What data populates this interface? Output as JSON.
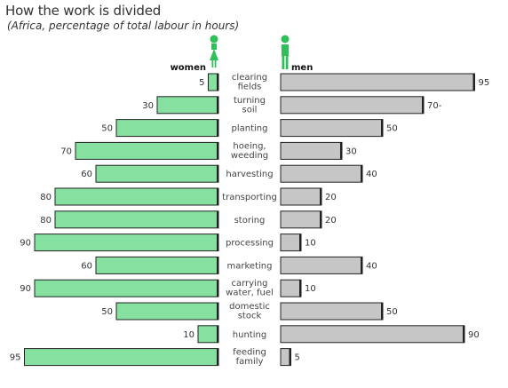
{
  "header": {
    "title": "How the work is divided",
    "subtitle": "(Africa, percentage of total labour in hours)"
  },
  "chart_data": {
    "type": "bar",
    "orientation": "horizontal",
    "layout": "butterfly",
    "title": "How the work is divided",
    "subtitle": "(Africa, percentage of total labour in hours)",
    "categories": [
      [
        "clearing",
        "fields"
      ],
      [
        "turning",
        "soil"
      ],
      [
        "planting"
      ],
      [
        "hoeing,",
        "weeding"
      ],
      [
        "harvesting"
      ],
      [
        "transporting"
      ],
      [
        "storing"
      ],
      [
        "processing"
      ],
      [
        "marketing"
      ],
      [
        "carrying",
        "water, fuel"
      ],
      [
        "domestic",
        "stock"
      ],
      [
        "hunting"
      ],
      [
        "feeding",
        "family"
      ]
    ],
    "series": [
      {
        "name": "women",
        "side": "left",
        "color": "#86e0a0",
        "icon": "female-icon",
        "values": [
          5,
          30,
          50,
          70,
          60,
          80,
          80,
          90,
          60,
          90,
          50,
          10,
          95
        ],
        "labels": [
          "5",
          "30",
          "50",
          "70",
          "60",
          "80",
          "80",
          "90",
          "60",
          "90",
          "50",
          "10",
          "95"
        ]
      },
      {
        "name": "men",
        "side": "right",
        "color": "#c6c6c6",
        "icon": "male-icon",
        "values": [
          95,
          70,
          50,
          30,
          40,
          20,
          20,
          10,
          40,
          10,
          50,
          90,
          5
        ],
        "labels": [
          "95",
          "70-",
          "50",
          "30",
          "40",
          "20",
          "20",
          "10",
          "40",
          "10",
          "50",
          "90",
          "5"
        ]
      }
    ],
    "xlim": [
      0,
      100
    ],
    "grid": false,
    "legend": "top, above each bar group"
  }
}
